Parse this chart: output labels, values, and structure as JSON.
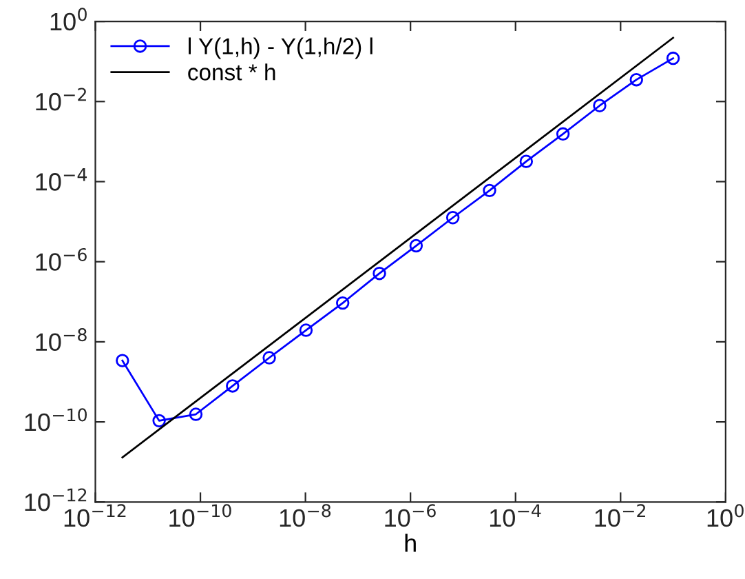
{
  "chart_data": {
    "type": "line",
    "xlabel": "h",
    "log": "xy",
    "legend": "top left",
    "grid": false,
    "xlim": [
      1e-12,
      1
    ],
    "ylim": [
      1e-12,
      1
    ],
    "xticks": [
      {
        "value": 1e-12,
        "label": "10$^{−12}$"
      },
      {
        "value": 1e-10,
        "label": "10$^{−10}$"
      },
      {
        "value": 1e-08,
        "label": "10$^{−8}$"
      },
      {
        "value": 1e-06,
        "label": "10$^{−6}$"
      },
      {
        "value": 0.0001,
        "label": "10$^{−4}$"
      },
      {
        "value": 0.01,
        "label": "10$^{−2}$"
      },
      {
        "value": 1,
        "label": "10$^{0}$"
      }
    ],
    "yticks": [
      {
        "value": 1e-12,
        "label": "10$^{−12}$"
      },
      {
        "value": 1e-10,
        "label": "10$^{−10}$"
      },
      {
        "value": 1e-08,
        "label": "10$^{−8}$"
      },
      {
        "value": 1e-06,
        "label": "10$^{−6}$"
      },
      {
        "value": 0.0001,
        "label": "10$^{−4}$"
      },
      {
        "value": 0.01,
        "label": "10$^{−2}$"
      },
      {
        "value": 1,
        "label": "10$^{0}$"
      }
    ],
    "series": [
      {
        "name": "l Y(1,h) - Y(1,h/2) l",
        "color": "#0000ff",
        "marker": "circle",
        "x": [
          3.2768e-12,
          1.6384e-11,
          8.192e-11,
          4.096e-10,
          2.048e-09,
          1.024e-08,
          5.12e-08,
          2.56e-07,
          1.28e-06,
          6.4e-06,
          3.2e-05,
          0.00016,
          0.0008,
          0.004,
          0.02,
          0.1
        ],
        "values": [
          3.4e-09,
          1.07e-10,
          1.55e-10,
          7.9e-10,
          4e-09,
          1.95e-08,
          9.3e-08,
          5.1e-07,
          2.5e-06,
          1.26e-05,
          6e-05,
          0.00032,
          0.00155,
          0.0079,
          0.035,
          0.12
        ]
      },
      {
        "name": "const * h",
        "color": "#000000",
        "marker": "none",
        "x": [
          3.2768e-12,
          0.1
        ],
        "values": [
          1.3e-11,
          0.39
        ]
      }
    ]
  }
}
